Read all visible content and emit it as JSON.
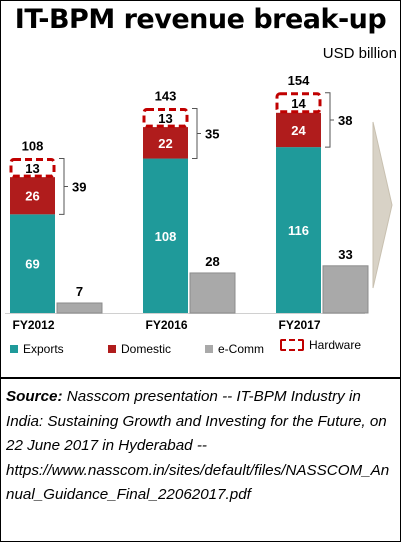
{
  "title": "IT-BPM revenue break-up",
  "unit_label": "USD billion",
  "colors": {
    "exports": "#1f9a9a",
    "domestic": "#b01c1c",
    "ecomm": "#a9a9a9",
    "hardware_border": "#c00000"
  },
  "chart_data": {
    "type": "bar",
    "categories": [
      "FY2012",
      "FY2016",
      "FY2017"
    ],
    "series": [
      {
        "name": "Exports",
        "values": [
          69,
          108,
          116
        ]
      },
      {
        "name": "Domestic",
        "values": [
          26,
          22,
          24
        ]
      },
      {
        "name": "Hardware",
        "values": [
          13,
          13,
          14
        ]
      },
      {
        "name": "e-Comm",
        "values": [
          7,
          28,
          33
        ]
      }
    ],
    "stack_totals": [
      108,
      143,
      154
    ],
    "bracket_totals": [
      39,
      35,
      38
    ],
    "legend": [
      "Exports",
      "Domestic",
      "e-Comm",
      "Hardware"
    ],
    "legend_position": "bottom"
  },
  "source": {
    "label": "Source:",
    "text": " Nasscom presentation -- IT-BPM Industry in India: Sustaining Growth and Investing for the Future, on 22 June 2017 in Hyderabad --",
    "url": "https://www.nasscom.in/sites/default/files/NASSCOM_Annual_Guidance_Final_22062017.pdf"
  }
}
